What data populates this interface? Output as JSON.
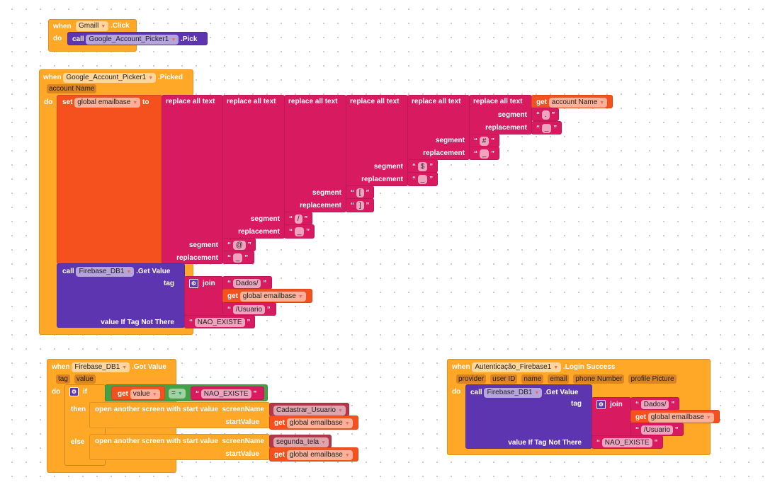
{
  "gmail_click": {
    "when": "when",
    "component": "Gmaill",
    "event": ".Click",
    "do": "do",
    "call": "call",
    "target": "Google_Account_Picker1",
    "method": ".Pick"
  },
  "picked": {
    "when": "when",
    "component": "Google_Account_Picker1",
    "event": ".Picked",
    "param": "account Name",
    "do": "do",
    "set": "set",
    "variable": "global emailbase",
    "to": "to",
    "replace_label": "replace all text",
    "get": "get",
    "get_var": "account Name",
    "segment_label": "segment",
    "replacement_label": "replacement",
    "replacements": [
      {
        "segment": ".",
        "replacement": "_"
      },
      {
        "segment": "#",
        "replacement": "_"
      },
      {
        "segment": "$",
        "replacement": "_"
      },
      {
        "segment": "[",
        "replacement": "]"
      },
      {
        "segment": "/",
        "replacement": "_"
      },
      {
        "segment": "@",
        "replacement": "_"
      }
    ],
    "call": "call",
    "db": "Firebase_DB1",
    "method": ".Get Value",
    "tag": "tag",
    "join": "join",
    "part1": "Dados/",
    "part2": "global emailbase",
    "part3": "/Usuario",
    "value_if": "value If Tag Not There",
    "default": "NAO_EXISTE"
  },
  "got_value": {
    "when": "when",
    "component": "Firebase_DB1",
    "event": ".Got Value",
    "params": [
      "tag",
      "value"
    ],
    "do": "do",
    "if": "if",
    "then": "then",
    "else": "else",
    "get": "get",
    "get_var": "value",
    "op": "=",
    "compare": "NAO_EXISTE",
    "open_screen": "open another screen with start value",
    "screen_name_label": "screenName",
    "start_value_label": "startValue",
    "then_screen": "Cadastrar_Usuario",
    "else_screen": "segunda_tela",
    "start_var": "global emailbase"
  },
  "login": {
    "when": "when",
    "component": "Autenticação_Firebase1",
    "event": ".Login Success",
    "params": [
      "provider",
      "user ID",
      "name",
      "email",
      "phone Number",
      "profile Picture"
    ],
    "do": "do",
    "call": "call",
    "db": "Firebase_DB1",
    "method": ".Get Value",
    "tag": "tag",
    "join": "join",
    "part1": "Dados/",
    "get": "get",
    "part2": "global emailbase",
    "part3": "/Usuario",
    "value_if": "value If Tag Not There",
    "default": "NAO_EXISTE"
  }
}
